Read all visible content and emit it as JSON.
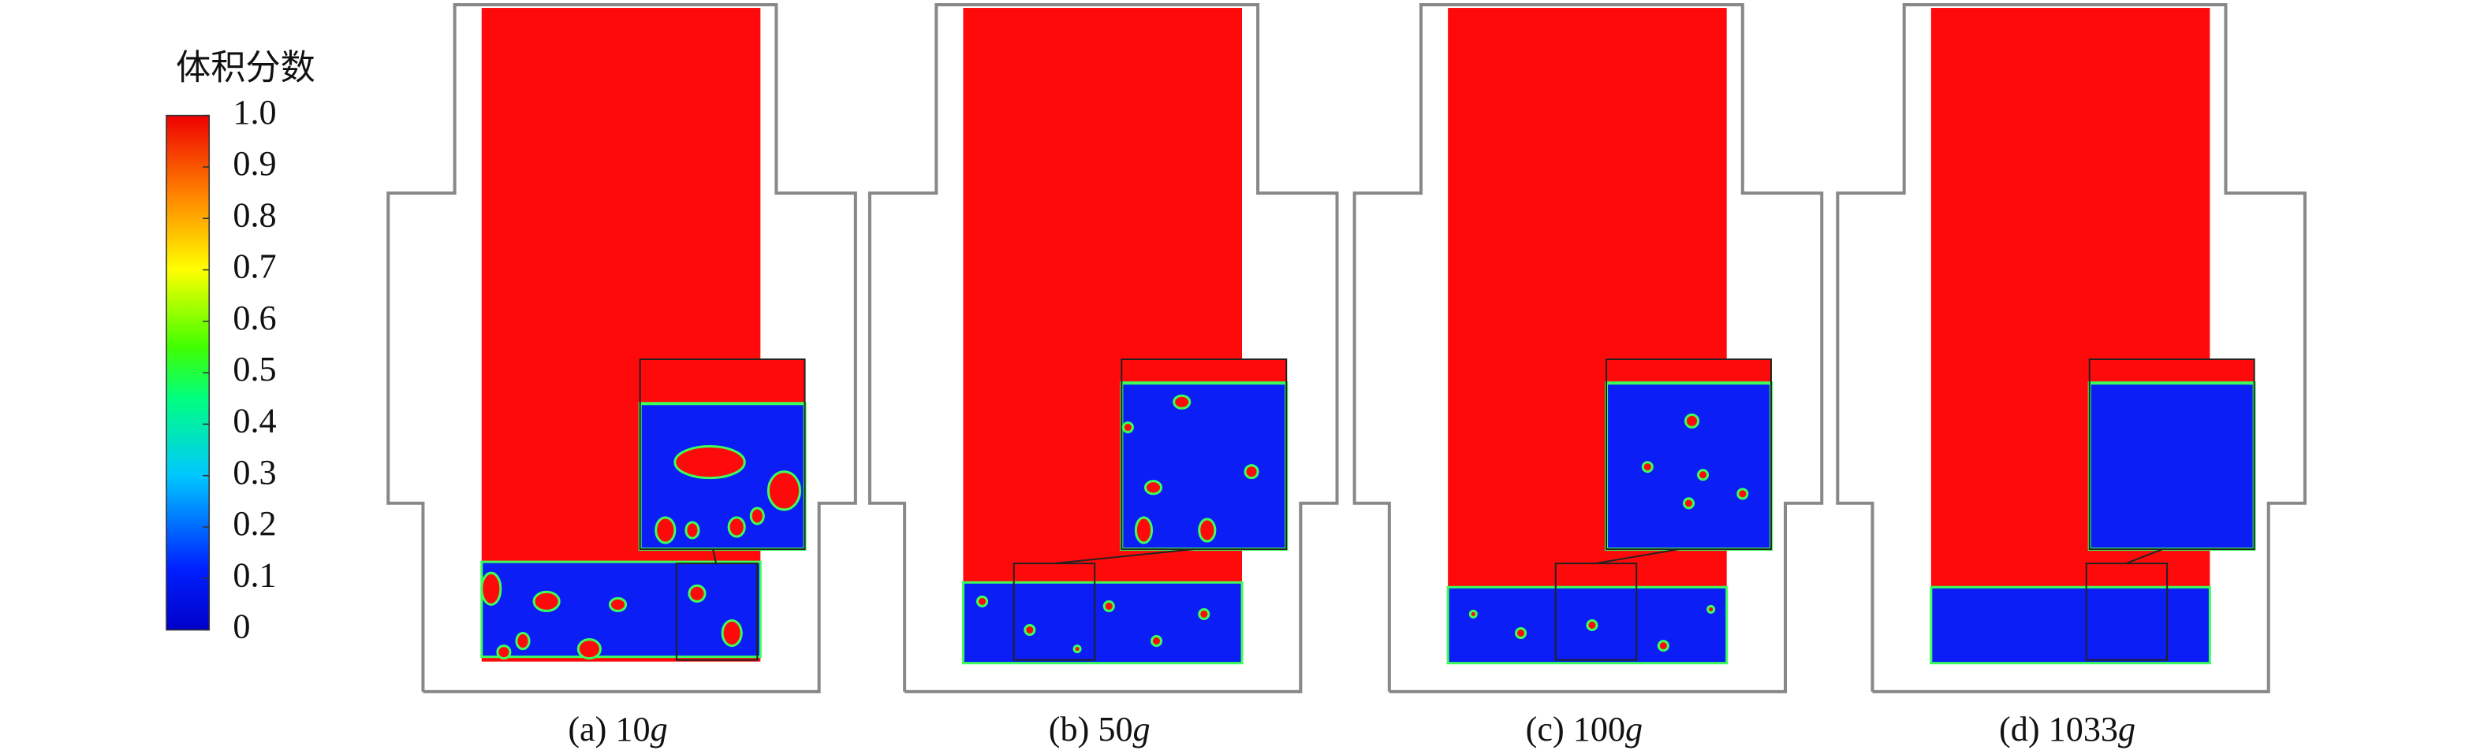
{
  "colorbar": {
    "title": "体积分数",
    "ticks": [
      "1.0",
      "0.9",
      "0.8",
      "0.7",
      "0.6",
      "0.5",
      "0.4",
      "0.3",
      "0.2",
      "0.1",
      "0"
    ]
  },
  "panels": [
    {
      "label": "(a) 10",
      "unit": "g"
    },
    {
      "label": "(b) 50",
      "unit": "g"
    },
    {
      "label": "(c) 100",
      "unit": "g"
    },
    {
      "label": "(d) 1033",
      "unit": "g"
    }
  ]
}
